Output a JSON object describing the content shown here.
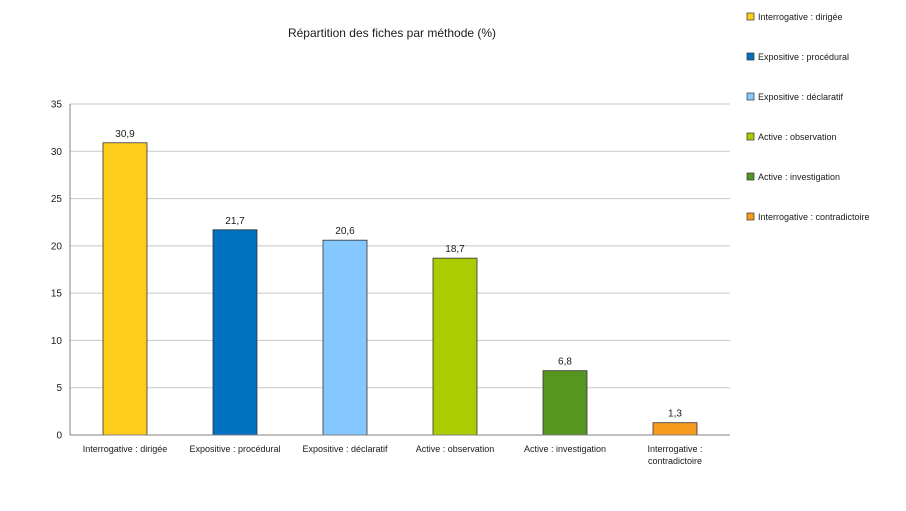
{
  "chart_data": {
    "type": "bar",
    "title": "Répartition des fiches par méthode (%)",
    "xlabel": "",
    "ylabel": "",
    "ylim": [
      0,
      35
    ],
    "yticks": [
      0,
      5,
      10,
      15,
      20,
      25,
      30,
      35
    ],
    "grid": true,
    "legend_position": "top-right",
    "categories": [
      [
        "Interrogative : dirigée"
      ],
      [
        "Expositive : procédural"
      ],
      [
        "Expositive : déclaratif"
      ],
      [
        "Active : observation"
      ],
      [
        "Active : investigation"
      ],
      [
        "Interrogative :",
        "contradictoire"
      ]
    ],
    "values": [
      30.9,
      21.7,
      20.6,
      18.7,
      6.8,
      1.3
    ],
    "value_labels": [
      "30,9",
      "21,7",
      "20,6",
      "18,7",
      "6,8",
      "1,3"
    ],
    "colors": [
      "#FFCC1A",
      "#0070C0",
      "#85C8FF",
      "#AACC00",
      "#56951F",
      "#F79A1E"
    ],
    "legend": [
      {
        "label": "Interrogative : dirigée",
        "color": "#FFCC1A"
      },
      {
        "label": "Expositive : procédural",
        "color": "#0070C0"
      },
      {
        "label": "Expositive : déclaratif",
        "color": "#85C8FF"
      },
      {
        "label": "Active : observation",
        "color": "#AACC00"
      },
      {
        "label": "Active : investigation",
        "color": "#56951F"
      },
      {
        "label": "Interrogative : contradictoire",
        "color": "#F79A1E"
      }
    ]
  }
}
